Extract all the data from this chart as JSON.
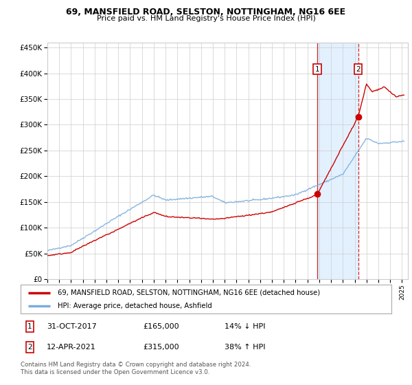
{
  "title": "69, MANSFIELD ROAD, SELSTON, NOTTINGHAM, NG16 6EE",
  "subtitle": "Price paid vs. HM Land Registry's House Price Index (HPI)",
  "ylabel_values": [
    0,
    50000,
    100000,
    150000,
    200000,
    250000,
    300000,
    350000,
    400000,
    450000
  ],
  "ylabel_labels": [
    "£0",
    "£50K",
    "£100K",
    "£150K",
    "£200K",
    "£250K",
    "£300K",
    "£350K",
    "£400K",
    "£450K"
  ],
  "sale1_date": "31-OCT-2017",
  "sale1_price": 165000,
  "sale1_pct": "14% ↓ HPI",
  "sale1_x": 2017.83,
  "sale2_date": "12-APR-2021",
  "sale2_price": 315000,
  "sale2_pct": "38% ↑ HPI",
  "sale2_x": 2021.29,
  "legend1": "69, MANSFIELD ROAD, SELSTON, NOTTINGHAM, NG16 6EE (detached house)",
  "legend2": "HPI: Average price, detached house, Ashfield",
  "footer": "Contains HM Land Registry data © Crown copyright and database right 2024.\nThis data is licensed under the Open Government Licence v3.0.",
  "line_color_red": "#cc0000",
  "line_color_blue": "#7aaddc",
  "shade_color": "#ddeeff",
  "grid_color": "#cccccc",
  "bg_color": "#ffffff",
  "box_color": "#cc0000"
}
